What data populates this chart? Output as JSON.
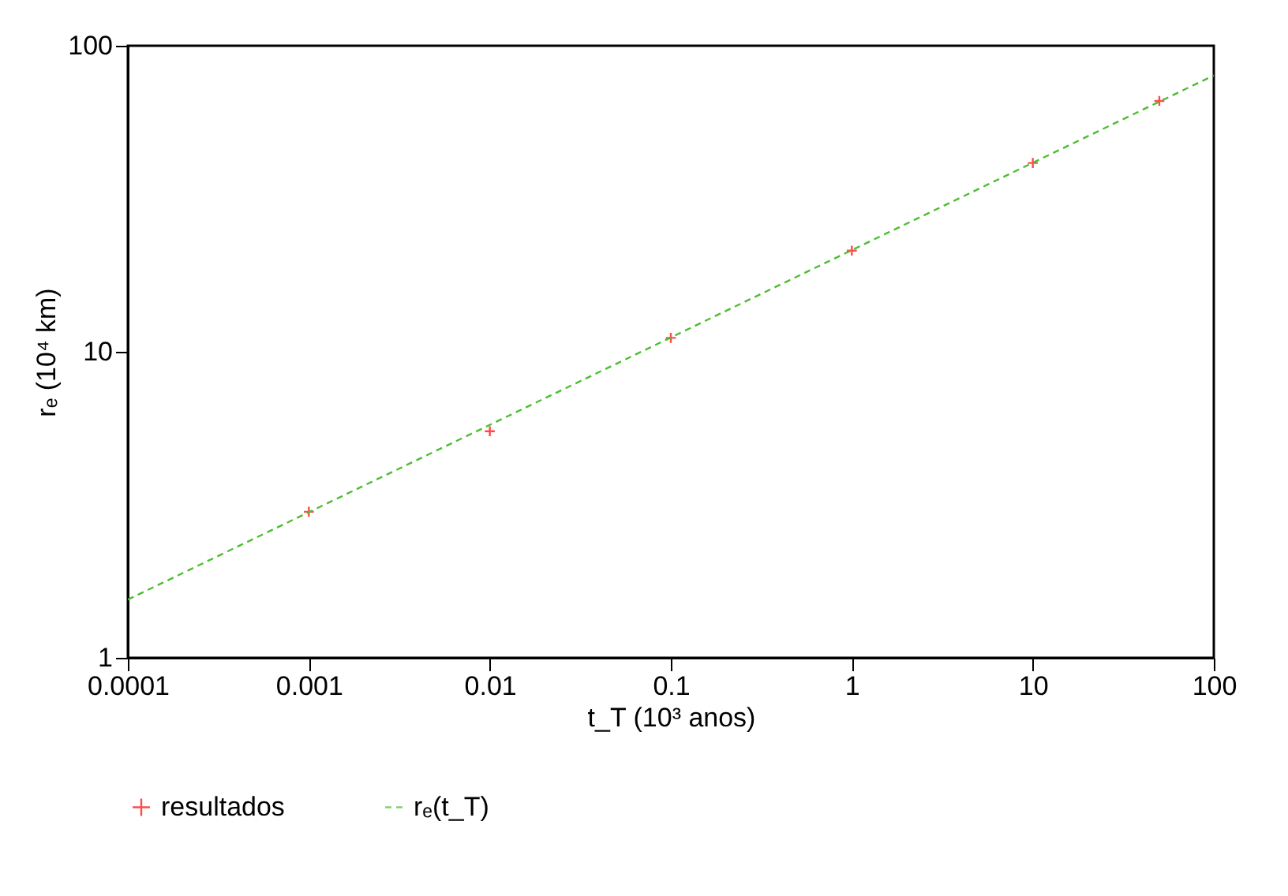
{
  "chart_data": {
    "type": "scatter",
    "xlabel": "t_T (10³ anos)",
    "ylabel": "rₑ (10⁴ km)",
    "log": "xy",
    "grid": false,
    "legend": "bottom",
    "xlim": [
      0.0001,
      100
    ],
    "xticks": [
      0.0001,
      0.001,
      0.01,
      0.1,
      1,
      10,
      100
    ],
    "ylim": [
      1,
      100
    ],
    "yticks": [
      1,
      10,
      100
    ],
    "series": [
      {
        "name": "resultados",
        "marker": "cross",
        "color": "#ff0000",
        "x": [
          0.001,
          0.01,
          0.1,
          1,
          10,
          50
        ],
        "values": [
          3.0,
          5.5,
          11.1,
          21.4,
          41.4,
          66
        ]
      },
      {
        "name": "rₑ(t_T)",
        "type": "line",
        "line_style": "dashed",
        "marker": "none",
        "color": "#4dbd33",
        "x": [
          0.0001,
          100
        ],
        "values": [
          1.55,
          80
        ]
      }
    ]
  }
}
